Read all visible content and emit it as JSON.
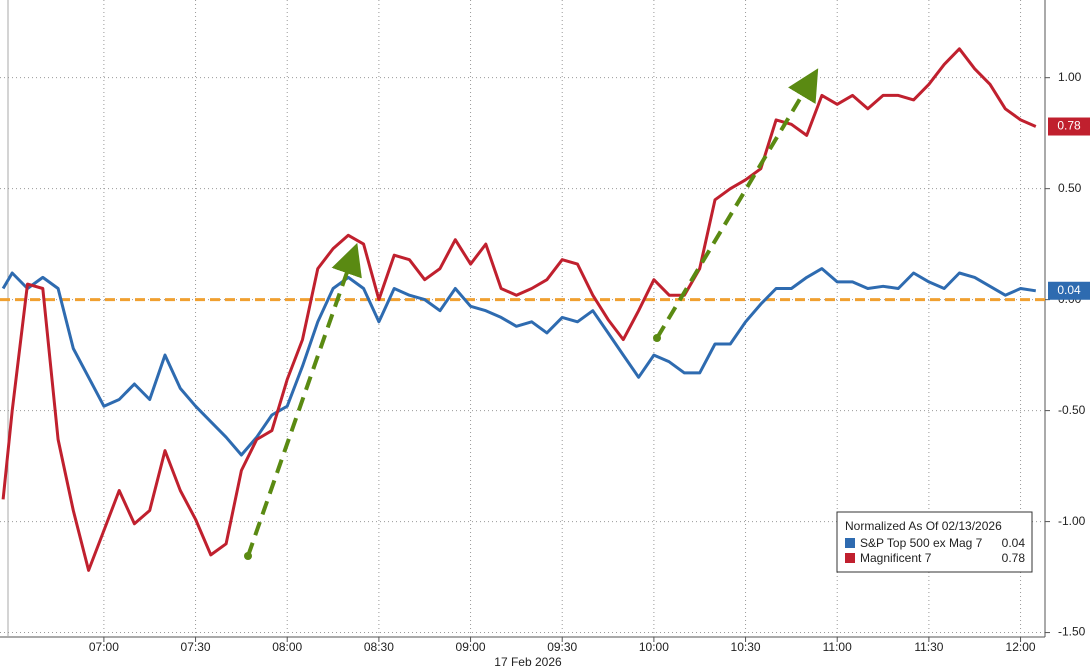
{
  "chart_data": {
    "type": "line",
    "xlabel": "17 Feb 2026",
    "legend_title": "Normalized As Of 02/13/2026",
    "x": [
      387,
      390,
      395,
      400,
      405,
      410,
      415,
      420,
      425,
      430,
      435,
      440,
      445,
      450,
      455,
      460,
      465,
      470,
      475,
      480,
      485,
      490,
      495,
      500,
      505,
      510,
      515,
      520,
      525,
      530,
      535,
      540,
      545,
      550,
      555,
      560,
      565,
      570,
      575,
      580,
      585,
      590,
      595,
      600,
      605,
      610,
      615,
      620,
      625,
      630,
      635,
      640,
      645,
      650,
      655,
      660,
      665,
      670,
      675,
      680,
      685,
      690,
      695,
      700,
      705,
      710,
      715,
      720,
      725
    ],
    "xlim": [
      386,
      728
    ],
    "xticks": [
      {
        "value": 420,
        "label": "07:00"
      },
      {
        "value": 450,
        "label": "07:30"
      },
      {
        "value": 480,
        "label": "08:00"
      },
      {
        "value": 510,
        "label": "08:30"
      },
      {
        "value": 540,
        "label": "09:00"
      },
      {
        "value": 570,
        "label": "09:30"
      },
      {
        "value": 600,
        "label": "10:00"
      },
      {
        "value": 630,
        "label": "10:30"
      },
      {
        "value": 660,
        "label": "11:00"
      },
      {
        "value": 690,
        "label": "11:30"
      },
      {
        "value": 720,
        "label": "12:00"
      }
    ],
    "ylim": [
      -1.52,
      1.35
    ],
    "yticks": [
      {
        "value": 1,
        "label": "1.00"
      },
      {
        "value": 0.5,
        "label": "0.50"
      },
      {
        "value": 0,
        "label": "0.00"
      },
      {
        "value": -0.5,
        "label": "-0.50"
      },
      {
        "value": -1,
        "label": "-1.00"
      },
      {
        "value": -1.5,
        "label": "-1.50"
      }
    ],
    "grid": true,
    "series": [
      {
        "name": "S&P Top 500 ex Mag 7",
        "color": "#2e6bb0",
        "values": [
          0.05,
          0.12,
          0.05,
          0.1,
          0.05,
          -0.22,
          -0.35,
          -0.48,
          -0.45,
          -0.38,
          -0.45,
          -0.25,
          -0.4,
          -0.48,
          -0.55,
          -0.62,
          -0.7,
          -0.62,
          -0.52,
          -0.48,
          -0.3,
          -0.1,
          0.05,
          0.1,
          0.05,
          -0.1,
          0.05,
          0.02,
          0.0,
          -0.05,
          0.05,
          -0.03,
          -0.05,
          -0.08,
          -0.12,
          -0.1,
          -0.15,
          -0.08,
          -0.1,
          -0.05,
          -0.15,
          -0.25,
          -0.35,
          -0.25,
          -0.28,
          -0.33,
          -0.33,
          -0.2,
          -0.2,
          -0.1,
          -0.02,
          0.05,
          0.05,
          0.1,
          0.14,
          0.08,
          0.08,
          0.05,
          0.06,
          0.05,
          0.12,
          0.08,
          0.05,
          0.12,
          0.1,
          0.06,
          0.02,
          0.05,
          0.04
        ]
      },
      {
        "name": "Magnificent 7",
        "color": "#c0202e",
        "values": [
          -0.9,
          -0.5,
          0.07,
          0.05,
          -0.63,
          -0.95,
          -1.22,
          -1.04,
          -0.86,
          -1.01,
          -0.95,
          -0.68,
          -0.86,
          -0.99,
          -1.15,
          -1.1,
          -0.77,
          -0.63,
          -0.59,
          -0.36,
          -0.18,
          0.14,
          0.23,
          0.29,
          0.25,
          0.0,
          0.2,
          0.18,
          0.09,
          0.14,
          0.27,
          0.16,
          0.25,
          0.05,
          0.02,
          0.05,
          0.09,
          0.18,
          0.16,
          0.02,
          -0.09,
          -0.18,
          -0.05,
          0.09,
          0.02,
          0.02,
          0.14,
          0.45,
          0.5,
          0.54,
          0.59,
          0.81,
          0.79,
          0.74,
          0.92,
          0.88,
          0.92,
          0.86,
          0.92,
          0.92,
          0.9,
          0.97,
          1.06,
          1.13,
          1.04,
          0.97,
          0.86,
          0.81,
          0.78
        ]
      }
    ]
  }
}
